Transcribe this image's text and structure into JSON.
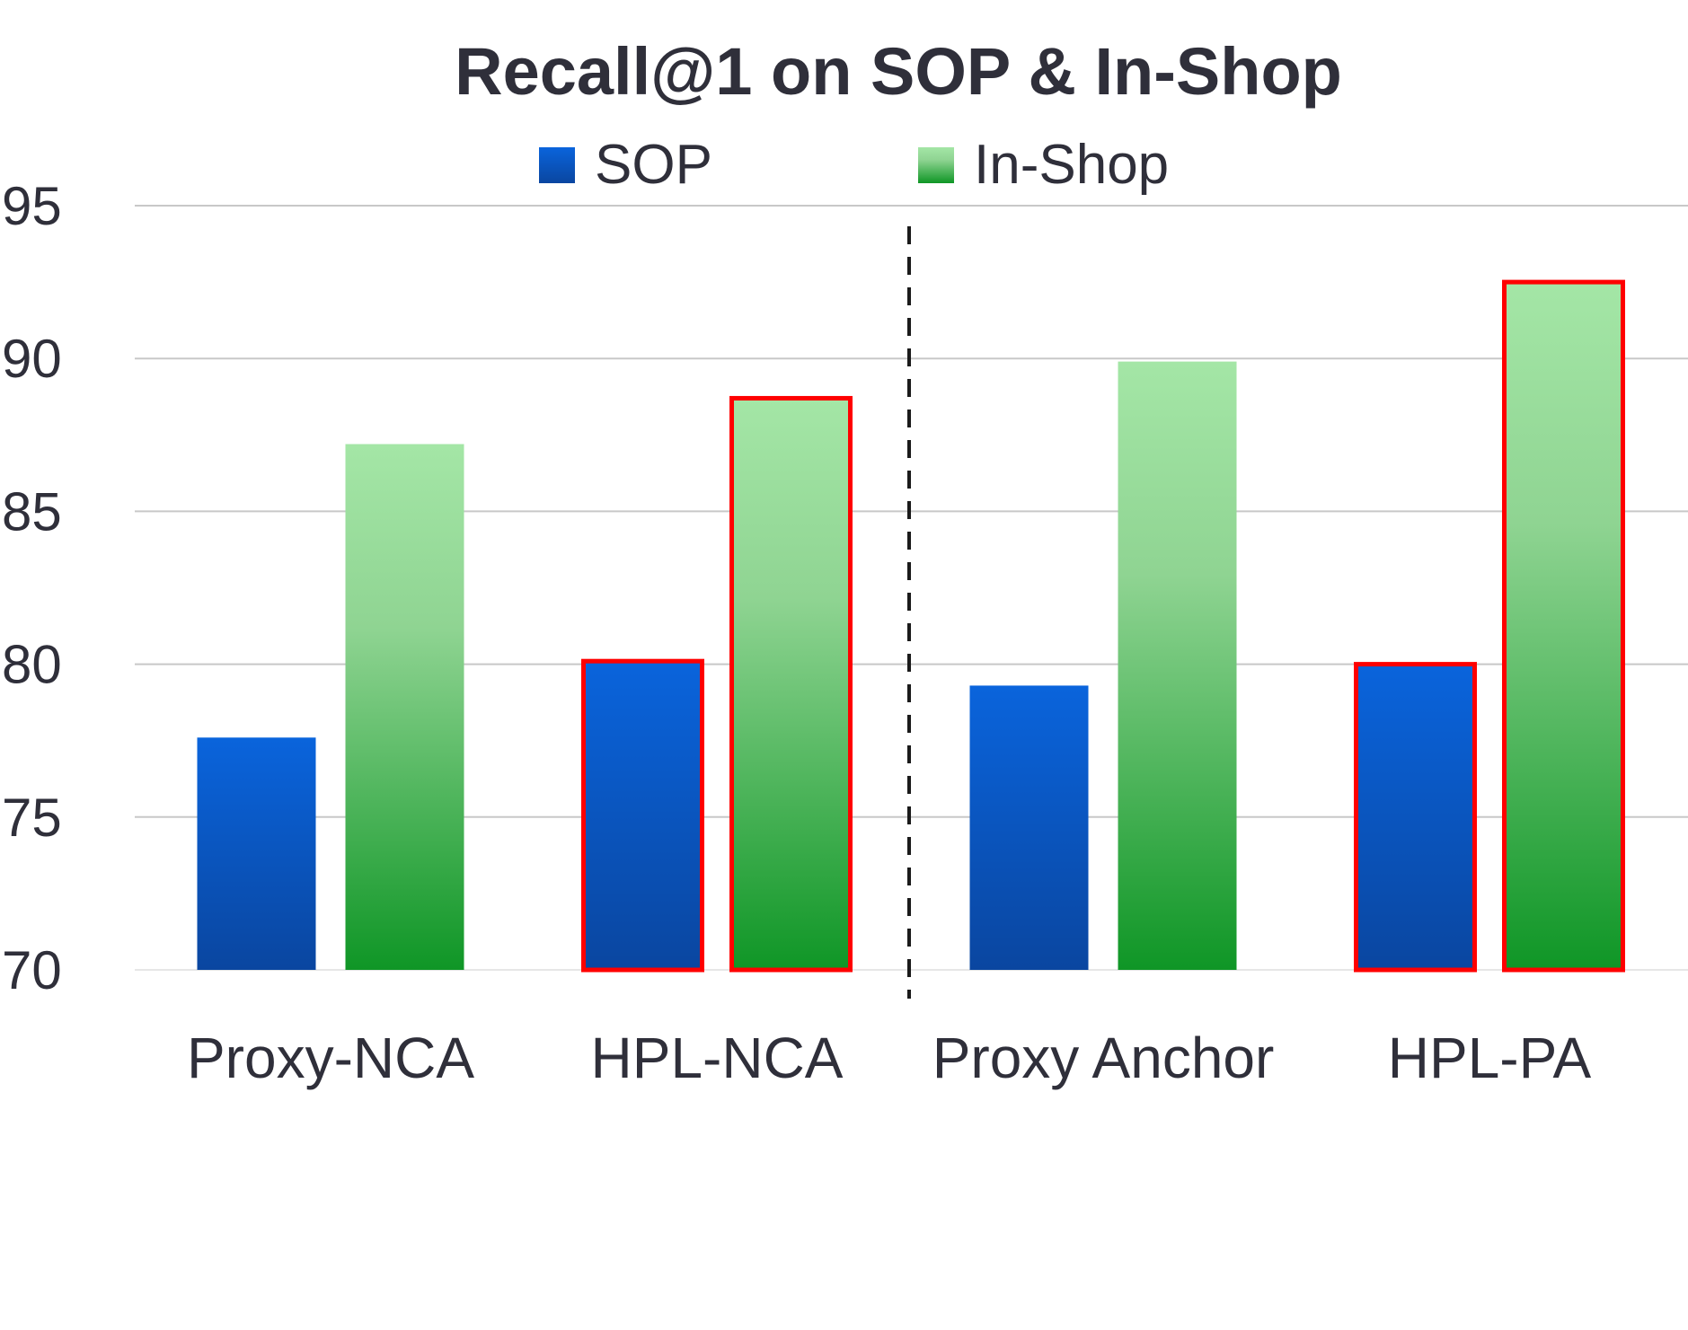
{
  "chart_data": {
    "type": "bar",
    "title": "Recall@1 on SOP & In-Shop",
    "xlabel": "",
    "ylabel": "",
    "categories": [
      "Proxy-NCA",
      "HPL-NCA",
      "Proxy Anchor",
      "HPL-PA"
    ],
    "series": [
      {
        "name": "SOP",
        "values": [
          77.6,
          80.1,
          79.3,
          80.0
        ]
      },
      {
        "name": "In-Shop",
        "values": [
          87.2,
          88.7,
          89.9,
          92.5
        ]
      }
    ],
    "highlighted_categories": [
      "HPL-NCA",
      "HPL-PA"
    ],
    "ylim": [
      70,
      95
    ],
    "yticks": [
      "70",
      "75",
      "80",
      "85",
      "90",
      "95"
    ],
    "grid": true,
    "legend": "top-center",
    "separator": "between Proxy-NCA/HPL-NCA and Proxy Anchor/HPL-PA (dashed)",
    "colors": {
      "sop_top": "#0a64dc",
      "sop_bottom": "#0a46a0",
      "inshop_top": "#a4e6a6",
      "inshop_bottom": "#0f9626",
      "highlight_border": "#ff0000",
      "grid": "#c8c8c8",
      "text": "#2f2f3a"
    }
  }
}
